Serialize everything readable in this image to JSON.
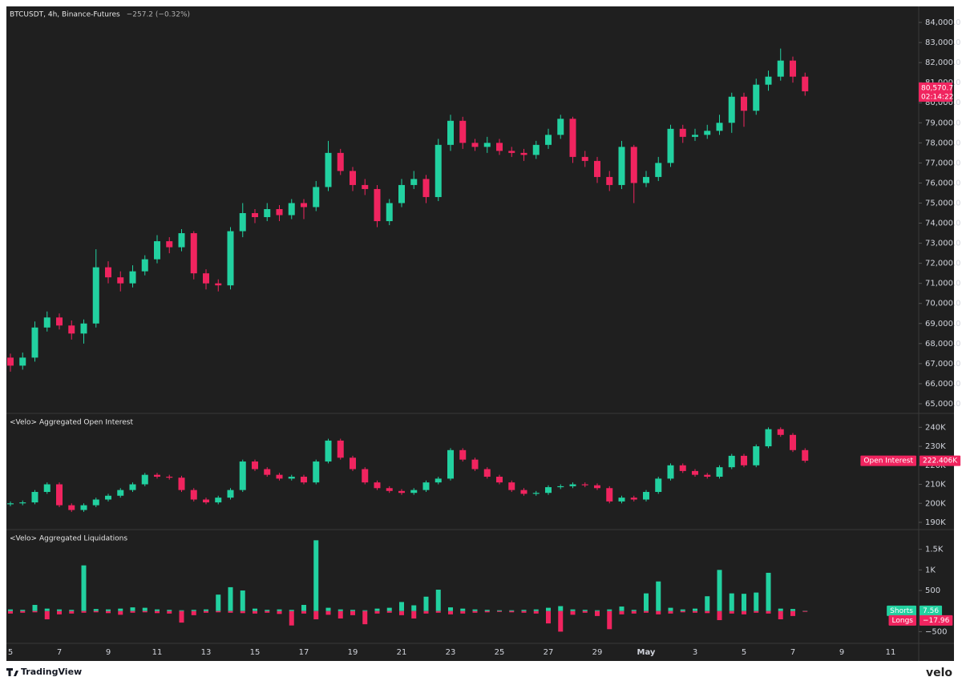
{
  "branding": {
    "left": "TradingView",
    "right": "velo"
  },
  "chart_data": [
    {
      "type": "candlestick",
      "title": "BTCUSDT, 4h, Binance-Futures",
      "change_label": "−257.2 (−0.32%)",
      "up_color": "#22d1a0",
      "down_color": "#f0245f",
      "last_price_label": "80,570.7",
      "countdown": "02:14:22",
      "ylim": [
        64520,
        84800
      ],
      "yticks": [
        {
          "value": 65000,
          "label": "65,000.0"
        },
        {
          "value": 66000,
          "label": "66,000.0"
        },
        {
          "value": 67000,
          "label": "67,000.0"
        },
        {
          "value": 68000,
          "label": "68,000.0"
        },
        {
          "value": 69000,
          "label": "69,000.0"
        },
        {
          "value": 70000,
          "label": "70,000.0"
        },
        {
          "value": 71000,
          "label": "71,000.0"
        },
        {
          "value": 72000,
          "label": "72,000.0"
        },
        {
          "value": 73000,
          "label": "73,000.0"
        },
        {
          "value": 74000,
          "label": "74,000.0"
        },
        {
          "value": 75000,
          "label": "75,000.0"
        },
        {
          "value": 76000,
          "label": "76,000.0"
        },
        {
          "value": 77000,
          "label": "77,000.0"
        },
        {
          "value": 78000,
          "label": "78,000.0"
        },
        {
          "value": 79000,
          "label": "79,000.0"
        },
        {
          "value": 80000,
          "label": "80,000.0"
        },
        {
          "value": 81000,
          "label": "81,000.0"
        },
        {
          "value": 82000,
          "label": "82,000.0"
        },
        {
          "value": 83000,
          "label": "83,000.0"
        },
        {
          "value": 84000,
          "label": "84,000.0"
        }
      ],
      "open": [
        67300,
        66900,
        67300,
        68800,
        69300,
        68900,
        68500,
        69000,
        71800,
        71300,
        71000,
        71600,
        72200,
        73100,
        72800,
        73500,
        71500,
        71000,
        70900,
        73600,
        74500,
        74300,
        74700,
        74400,
        75000,
        74800,
        75800,
        77500,
        76600,
        75900,
        75700,
        74100,
        75000,
        75900,
        76200,
        75300,
        77900,
        79100,
        78000,
        77800,
        78000,
        77600,
        77500,
        77400,
        77900,
        78400,
        79200,
        77300,
        77100,
        76300,
        75900,
        77800,
        76000,
        76300,
        77000,
        78700,
        78300,
        78400,
        78600,
        79000,
        80300,
        79600,
        80900,
        81300,
        82100,
        81300,
        null,
        null,
        null,
        null,
        null,
        null,
        null
      ],
      "high": [
        67500,
        67550,
        69100,
        69600,
        69500,
        69150,
        69200,
        72700,
        72100,
        71600,
        71900,
        72400,
        73400,
        73300,
        73700,
        73600,
        71700,
        71200,
        73800,
        75000,
        74700,
        75000,
        74900,
        75200,
        75200,
        76100,
        78100,
        77700,
        76800,
        76200,
        75900,
        75200,
        76200,
        76600,
        76400,
        78200,
        79400,
        79300,
        78200,
        78300,
        78200,
        77800,
        77700,
        78100,
        78700,
        79400,
        79300,
        77600,
        77300,
        76600,
        78100,
        77900,
        76600,
        77300,
        78900,
        78900,
        78700,
        78900,
        79400,
        80500,
        80500,
        81200,
        81600,
        82700,
        82300,
        81500,
        null,
        null,
        null,
        null,
        null,
        null,
        null
      ],
      "low": [
        66600,
        66700,
        67100,
        68600,
        68700,
        68200,
        68000,
        68800,
        71000,
        70600,
        70800,
        71400,
        72000,
        72500,
        72600,
        71200,
        70700,
        70600,
        70700,
        73300,
        74000,
        74100,
        74100,
        74200,
        74200,
        74600,
        75600,
        76400,
        75600,
        75400,
        73800,
        73900,
        74800,
        75700,
        75000,
        75100,
        77600,
        77700,
        77600,
        77500,
        77400,
        77300,
        77100,
        77200,
        77700,
        78200,
        77000,
        76800,
        76000,
        75600,
        75700,
        75000,
        75800,
        76100,
        76800,
        78000,
        78100,
        78200,
        78400,
        78500,
        78800,
        79400,
        80600,
        81100,
        81000,
        80350,
        null,
        null,
        null,
        null,
        null,
        null,
        null
      ],
      "close": [
        66900,
        67300,
        68800,
        69300,
        68900,
        68500,
        69000,
        71800,
        71300,
        71000,
        71600,
        72200,
        73100,
        72800,
        73500,
        71500,
        71000,
        70900,
        73600,
        74500,
        74300,
        74700,
        74400,
        75000,
        74800,
        75800,
        77500,
        76600,
        75900,
        75700,
        74100,
        75000,
        75900,
        76200,
        75300,
        77900,
        79100,
        78000,
        77800,
        78000,
        77600,
        77500,
        77400,
        77900,
        78400,
        79200,
        77300,
        77100,
        76300,
        75900,
        77800,
        76000,
        76300,
        77000,
        78700,
        78300,
        78400,
        78600,
        79000,
        80300,
        79600,
        80900,
        81300,
        82100,
        81300,
        80570.7,
        null,
        null,
        null,
        null,
        null,
        null,
        null
      ]
    },
    {
      "type": "candlestick",
      "title": "<Velo> Aggregated Open Interest",
      "series_name": "Open Interest",
      "last_value_label": "222.406K",
      "up_color": "#22d1a0",
      "down_color": "#f0245f",
      "ylim": [
        186.2,
        247.3
      ],
      "yticks": [
        {
          "value": 190,
          "label": "190K"
        },
        {
          "value": 200,
          "label": "200K"
        },
        {
          "value": 210,
          "label": "210K"
        },
        {
          "value": 220,
          "label": "220K"
        },
        {
          "value": 230,
          "label": "230K"
        },
        {
          "value": 240,
          "label": "240K"
        }
      ],
      "open": [
        199.5,
        200,
        200.5,
        206,
        210,
        199,
        196.5,
        199,
        202,
        204,
        207,
        210,
        215,
        214,
        213.5,
        207,
        202,
        200.5,
        203,
        207,
        222,
        218,
        215,
        213,
        214,
        211,
        222,
        233,
        224,
        218,
        211,
        208,
        206.5,
        205.5,
        207,
        211,
        213,
        228,
        223,
        218,
        214,
        211,
        207,
        205,
        205.5,
        208.5,
        209,
        210,
        209.5,
        208,
        201,
        203,
        202,
        206,
        213,
        220,
        217,
        215,
        214,
        219,
        225,
        220,
        230,
        239,
        236,
        228,
        null,
        null,
        null,
        null,
        null,
        null,
        null
      ],
      "high": [
        201,
        201.5,
        207,
        211,
        211,
        200,
        200,
        203,
        205,
        208,
        211,
        216,
        216,
        215,
        214.5,
        208,
        203,
        204,
        208,
        223,
        223,
        219,
        216,
        215,
        215,
        223,
        234,
        234,
        225,
        219,
        212,
        209,
        207.5,
        208,
        212,
        214,
        229,
        229,
        224,
        219,
        215,
        212,
        208,
        206.5,
        209.5,
        210,
        211,
        211,
        210.5,
        209,
        204,
        204,
        207,
        214,
        221,
        221,
        218,
        216,
        220,
        226,
        226,
        231,
        240,
        240,
        237,
        229,
        null,
        null,
        null,
        null,
        null,
        null,
        null
      ],
      "low": [
        198.5,
        199,
        199.5,
        205,
        198,
        195.5,
        195.5,
        198,
        201,
        203,
        206,
        209,
        213,
        212.5,
        206,
        201,
        199.5,
        199.5,
        202,
        206,
        217,
        214,
        212,
        212,
        210,
        210,
        221,
        223,
        217,
        210,
        207,
        205.5,
        204.5,
        204.5,
        206,
        210,
        212,
        222,
        217,
        213,
        210,
        206,
        204,
        204,
        204.5,
        207.5,
        208,
        208.5,
        207,
        200,
        200,
        201,
        201,
        205,
        212,
        216,
        214,
        213,
        213,
        218,
        219,
        219,
        229,
        235,
        227,
        221.4,
        null,
        null,
        null,
        null,
        null,
        null,
        null
      ],
      "close": [
        200,
        200.5,
        206,
        210,
        199,
        196.5,
        199,
        202,
        204,
        207,
        210,
        215,
        214,
        213.5,
        207,
        202,
        200.5,
        203,
        207,
        222,
        218,
        215,
        213,
        214,
        211,
        222,
        233,
        224,
        218,
        211,
        208,
        206.5,
        205.5,
        207,
        211,
        213,
        228,
        223,
        218,
        214,
        211,
        207,
        205,
        205.5,
        208.5,
        209,
        210,
        209.5,
        208,
        201,
        203,
        202,
        206,
        213,
        220,
        217,
        215,
        214,
        219,
        225,
        220,
        230,
        239,
        236,
        228,
        222.406,
        null,
        null,
        null,
        null,
        null,
        null,
        null
      ]
    },
    {
      "type": "bar",
      "title": "<Velo> Aggregated Liquidations",
      "categories": [
        "5",
        null,
        null,
        null,
        "7",
        null,
        null,
        null,
        "9",
        null,
        null,
        null,
        "11",
        null,
        null,
        null,
        "13",
        null,
        null,
        null,
        "15",
        null,
        null,
        null,
        "17",
        null,
        null,
        null,
        "19",
        null,
        null,
        null,
        "21",
        null,
        null,
        null,
        "23",
        null,
        null,
        null,
        "25",
        null,
        null,
        null,
        "27",
        null,
        null,
        null,
        "29",
        null,
        null,
        null,
        "May",
        null,
        null,
        null,
        "3",
        null,
        null,
        null,
        "5",
        null,
        null,
        null,
        "7",
        null,
        null,
        null,
        "9",
        null,
        null,
        null,
        "11"
      ],
      "ylim": [
        -784,
        1980
      ],
      "yticks": [
        {
          "value": -500,
          "label": "−500"
        },
        500,
        {
          "value": 1000,
          "label": "1K"
        },
        {
          "value": 1500,
          "label": "1.5K"
        }
      ],
      "series": [
        {
          "name": "Shorts",
          "color": "#22d1a0",
          "last_value_label": "7.56",
          "values": [
            40,
            30,
            150,
            60,
            40,
            30,
            1110,
            50,
            40,
            60,
            90,
            80,
            40,
            30,
            20,
            30,
            40,
            400,
            580,
            500,
            60,
            30,
            40,
            30,
            150,
            1720,
            80,
            40,
            30,
            20,
            60,
            80,
            220,
            140,
            350,
            520,
            90,
            60,
            40,
            30,
            20,
            20,
            30,
            40,
            80,
            120,
            40,
            30,
            20,
            40,
            110,
            30,
            430,
            720,
            80,
            40,
            60,
            360,
            1000,
            430,
            420,
            450,
            930,
            60,
            50,
            7.56,
            null,
            null,
            null,
            null,
            null,
            null,
            null
          ]
        },
        {
          "name": "Longs",
          "color": "#f0245f",
          "last_value_label": "−17.96",
          "values": [
            -60,
            -40,
            -30,
            -200,
            -80,
            -60,
            -40,
            -30,
            -50,
            -90,
            -40,
            -30,
            -50,
            -60,
            -280,
            -100,
            -40,
            -30,
            -40,
            -50,
            -60,
            -40,
            -70,
            -350,
            -60,
            -200,
            -90,
            -180,
            -100,
            -320,
            -60,
            -40,
            -100,
            -180,
            -60,
            -40,
            -80,
            -60,
            -40,
            -30,
            -20,
            -30,
            -40,
            -60,
            -300,
            -500,
            -90,
            -40,
            -120,
            -440,
            -80,
            -60,
            -40,
            -80,
            -60,
            -30,
            -40,
            -50,
            -220,
            -60,
            -80,
            -40,
            -60,
            -200,
            -120,
            -17.96,
            null,
            null,
            null,
            null,
            null,
            null,
            null
          ]
        }
      ]
    }
  ]
}
